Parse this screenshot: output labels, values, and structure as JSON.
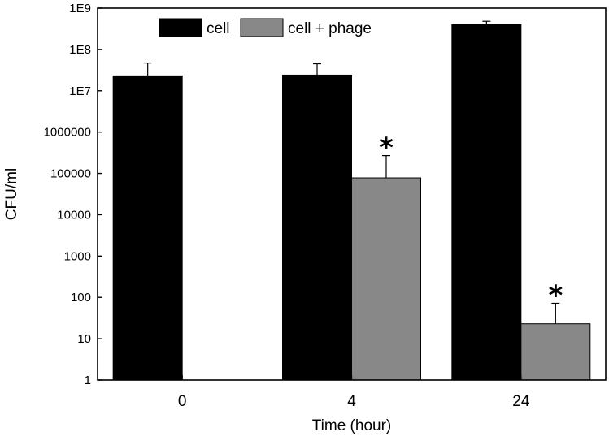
{
  "chart_data": {
    "type": "bar",
    "title": "",
    "xlabel": "Time (hour)",
    "ylabel": "CFU/ml",
    "yscale": "log",
    "ylim": [
      1,
      1000000000
    ],
    "ytick_values": [
      1,
      10,
      100,
      1000,
      10000,
      100000,
      1000000,
      10000000,
      100000000,
      1000000000
    ],
    "ytick_labels": [
      "1",
      "10",
      "100",
      "1000",
      "10000",
      "100000",
      "1000000",
      "1E7",
      "1E8",
      "1E9"
    ],
    "categories": [
      "0",
      "4",
      "24"
    ],
    "series": [
      {
        "name": "cell",
        "color": "#000000",
        "values": [
          23000000,
          24000000,
          400000000
        ],
        "error_upper": [
          47000000,
          45000000,
          480000000
        ],
        "significance": [
          "",
          "",
          ""
        ]
      },
      {
        "name": "cell + phage",
        "color": "#888888",
        "values": [
          null,
          78000,
          23
        ],
        "error_upper": [
          null,
          270000,
          72
        ],
        "significance": [
          "",
          "*",
          "*"
        ]
      }
    ],
    "legend_position": "top",
    "grid": false
  }
}
